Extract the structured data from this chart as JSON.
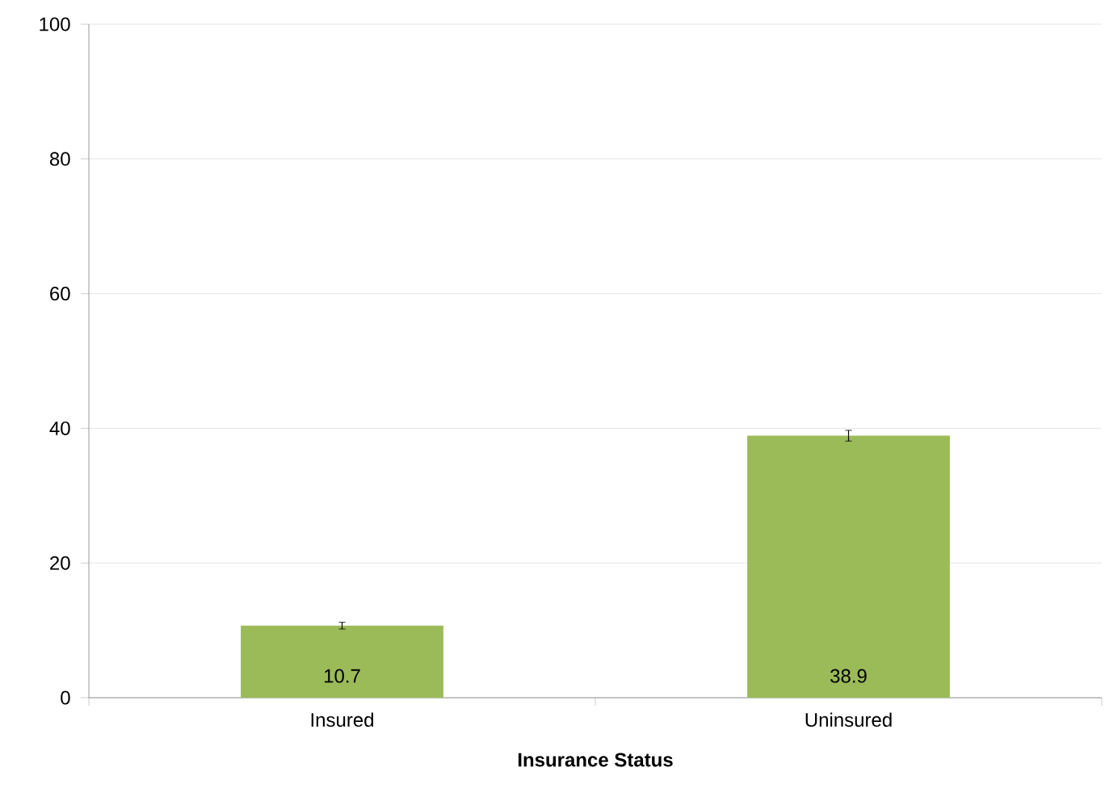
{
  "chart_data": {
    "type": "bar",
    "xlabel": "Insurance Status",
    "categories": [
      "Insured",
      "Uninsured"
    ],
    "values": [
      10.7,
      38.9
    ],
    "errors": [
      0.5,
      0.8
    ],
    "color": "#9bbb59",
    "data_labels": true,
    "ylim": [
      0,
      100
    ],
    "yticks": [
      0,
      20,
      40,
      60,
      80,
      100
    ],
    "grid": "y"
  }
}
